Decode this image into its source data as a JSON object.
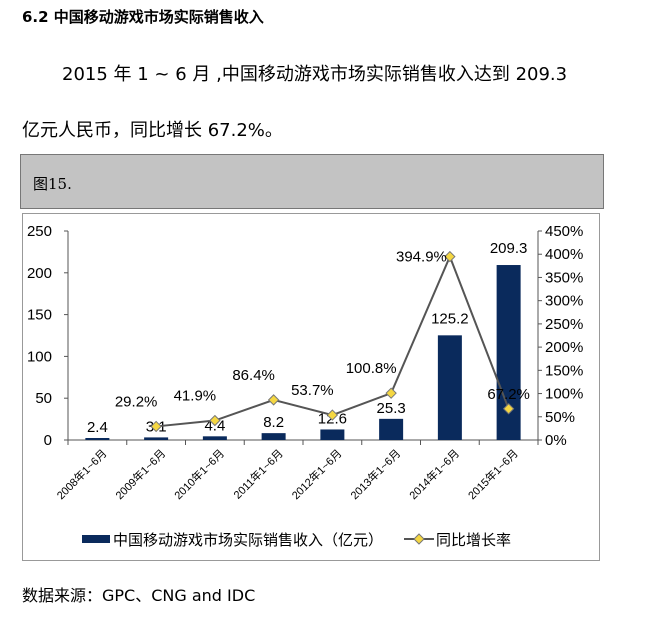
{
  "heading": "6.2 中国移动游戏市场实际销售收入",
  "paragraph": {
    "line1": "2015 年 1 ~ 6 月 ,中国移动游戏市场实际销售收入达到 209.3",
    "line2": "亿元人民币，同比增长 67.2%。"
  },
  "figure_label": "图15.",
  "source": "数据来源：GPC、CNG and IDC",
  "chart_data": {
    "type": "bar+line",
    "categories": [
      "2008年1~6月",
      "2009年1~6月",
      "2010年1~6月",
      "2011年1~6月",
      "2012年1~6月",
      "2013年1~6月",
      "2014年1~6月",
      "2015年1~6月"
    ],
    "series": [
      {
        "name": "中国移动游戏市场实际销售收入（亿元）",
        "type": "bar",
        "axis": "left",
        "color": "#0a2a5c",
        "values": [
          2.4,
          3.1,
          4.4,
          8.2,
          12.6,
          25.3,
          125.2,
          209.3
        ],
        "labels": [
          "2.4",
          "3.1",
          "4.4",
          "8.2",
          "12.6",
          "25.3",
          "125.2",
          "209.3"
        ]
      },
      {
        "name": "同比增长率",
        "type": "line",
        "axis": "right",
        "color": "#f5d742",
        "line_color": "#555555",
        "values": [
          null,
          29.2,
          41.9,
          86.4,
          53.7,
          100.8,
          394.9,
          67.2
        ],
        "labels": [
          "",
          "29.2%",
          "41.9%",
          "86.4%",
          "53.7%",
          "100.8%",
          "394.9%",
          "67.2%"
        ]
      }
    ],
    "left_axis": {
      "range": [
        0,
        250
      ],
      "ticks": [
        "0",
        "50",
        "100",
        "150",
        "200",
        "250"
      ]
    },
    "right_axis": {
      "range": [
        0,
        450
      ],
      "ticks": [
        "0%",
        "50%",
        "100%",
        "150%",
        "200%",
        "250%",
        "300%",
        "350%",
        "400%",
        "450%"
      ]
    },
    "legend": "bottom",
    "grid": false
  }
}
